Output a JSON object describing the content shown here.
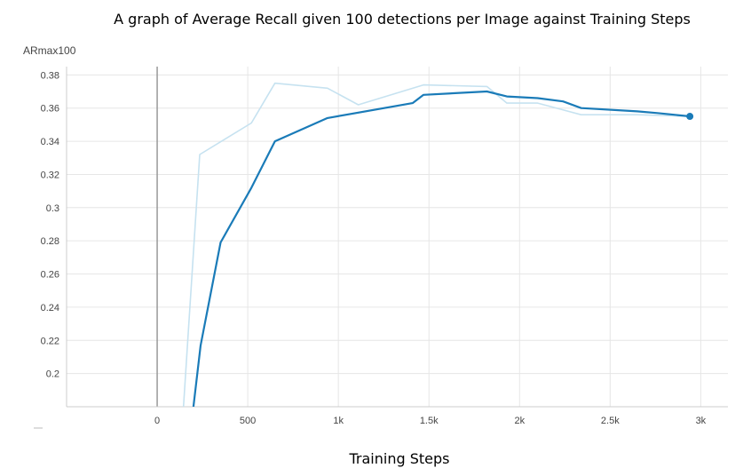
{
  "chart_data": {
    "type": "line",
    "title": "A graph of Average Recall given 100 detections per Image against Training Steps",
    "ylabel": "ARmax100",
    "xlabel": "Training Steps",
    "xlim": [
      -500,
      3150
    ],
    "ylim": [
      0.18,
      0.385
    ],
    "x_ticks": [
      0,
      500,
      1000,
      1500,
      2000,
      2500,
      3000
    ],
    "x_tick_labels": [
      "0",
      "500",
      "1k",
      "1.5k",
      "2k",
      "2.5k",
      "3k"
    ],
    "y_ticks": [
      0.2,
      0.22,
      0.24,
      0.26,
      0.28,
      0.3,
      0.32,
      0.34,
      0.36,
      0.38
    ],
    "y_tick_labels": [
      "0.2",
      "0.22",
      "0.24",
      "0.26",
      "0.28",
      "0.3",
      "0.32",
      "0.34",
      "0.36",
      "0.38"
    ],
    "grid": true,
    "colors": {
      "raw": "#c6e2f0",
      "smoothed": "#1a7bb8"
    },
    "series": [
      {
        "x": [
          145,
          235,
          520,
          650,
          940,
          1110,
          1470,
          1820,
          1930,
          2100,
          2340,
          2650,
          2940
        ],
        "y": [
          0.18,
          0.332,
          0.351,
          0.375,
          0.372,
          0.362,
          0.374,
          0.373,
          0.363,
          0.363,
          0.356,
          0.356,
          0.355
        ]
      },
      {
        "x": [
          200,
          240,
          350,
          520,
          650,
          940,
          1410,
          1470,
          1820,
          1930,
          2100,
          2240,
          2340,
          2650,
          2760,
          2940
        ],
        "y": [
          0.18,
          0.217,
          0.279,
          0.312,
          0.34,
          0.354,
          0.363,
          0.368,
          0.37,
          0.367,
          0.366,
          0.364,
          0.36,
          0.358,
          0.357,
          0.355
        ]
      }
    ]
  }
}
